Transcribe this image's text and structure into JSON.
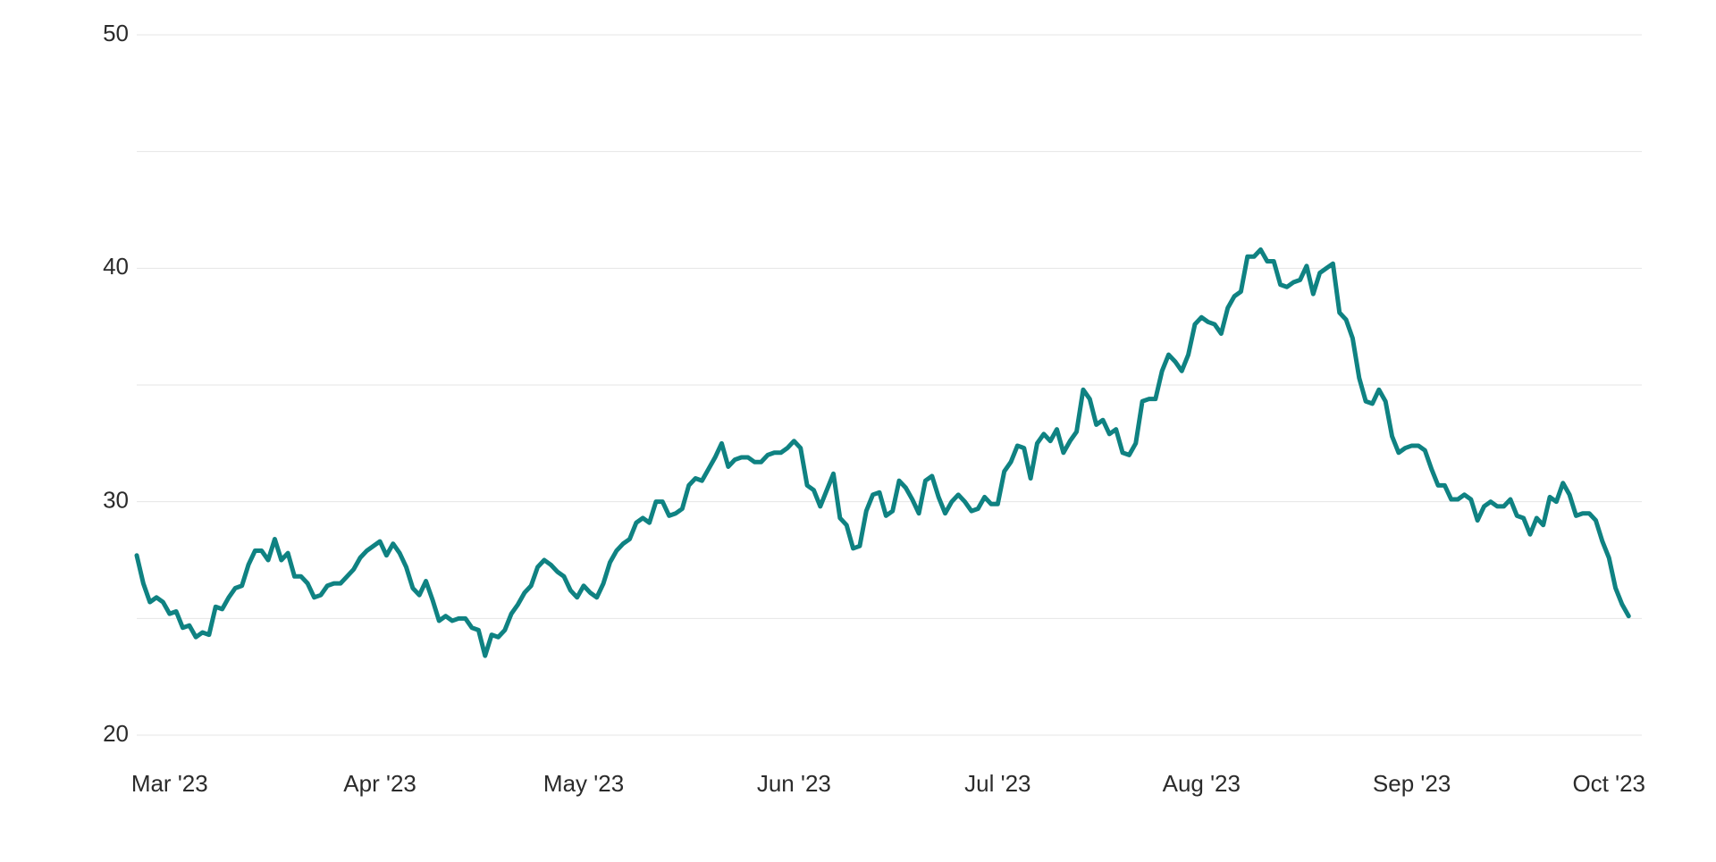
{
  "chart_data": {
    "type": "line",
    "x": [
      0,
      1,
      2,
      3,
      4,
      5,
      6,
      7,
      8,
      9,
      10,
      11,
      12,
      13,
      14,
      15,
      16,
      17,
      18,
      19,
      20,
      21,
      22,
      23,
      24,
      25,
      26,
      27,
      28,
      29,
      30,
      31,
      32,
      33,
      34,
      35,
      36,
      37,
      38,
      39,
      40,
      41,
      42,
      43,
      44,
      45,
      46,
      47,
      48,
      49,
      50,
      51,
      52,
      53,
      54,
      55,
      56,
      57,
      58,
      59,
      60,
      61,
      62,
      63,
      64,
      65,
      66,
      67,
      68,
      69,
      70,
      71,
      72,
      73,
      74,
      75,
      76,
      77,
      78,
      79,
      80,
      81,
      82,
      83,
      84,
      85,
      86,
      87,
      88,
      89,
      90,
      91,
      92,
      93,
      94,
      95,
      96,
      97,
      98,
      99,
      100,
      101,
      102,
      103,
      104,
      105,
      106,
      107,
      108,
      109,
      110,
      111,
      112,
      113,
      114,
      115,
      116,
      117,
      118,
      119,
      120,
      121,
      122,
      123,
      124,
      125,
      126,
      127,
      128,
      129,
      130,
      131,
      132,
      133,
      134,
      135,
      136,
      137,
      138,
      139,
      140,
      141,
      142,
      143,
      144,
      145,
      146,
      147,
      148,
      149,
      150,
      151,
      152,
      153,
      154,
      155,
      156,
      157,
      158,
      159,
      160,
      161,
      162,
      163,
      164,
      165,
      166,
      167,
      168,
      169,
      170,
      171,
      172,
      173,
      174,
      175,
      176,
      177,
      178,
      179,
      180,
      181,
      182,
      183,
      184,
      185,
      186,
      187,
      188,
      189,
      190,
      191,
      192,
      193,
      194,
      195,
      196,
      197,
      198,
      199,
      200,
      201,
      202,
      203,
      204,
      205,
      206,
      207,
      208,
      209,
      210,
      211,
      212,
      213,
      214,
      215,
      216,
      217,
      218,
      219,
      220,
      221,
      222,
      223,
      224,
      225,
      226,
      227
    ],
    "values": [
      27.7,
      26.5,
      25.7,
      25.9,
      25.7,
      25.2,
      25.3,
      24.6,
      24.7,
      24.2,
      24.4,
      24.3,
      25.5,
      25.4,
      25.9,
      26.3,
      26.4,
      27.3,
      27.9,
      27.9,
      27.5,
      28.4,
      27.5,
      27.8,
      26.8,
      26.8,
      26.5,
      25.9,
      26.0,
      26.4,
      26.5,
      26.5,
      26.8,
      27.1,
      27.6,
      27.9,
      28.1,
      28.3,
      27.7,
      28.2,
      27.8,
      27.2,
      26.3,
      26.0,
      26.6,
      25.8,
      24.9,
      25.1,
      24.9,
      25.0,
      25.0,
      24.6,
      24.5,
      23.4,
      24.3,
      24.2,
      24.5,
      25.2,
      25.6,
      26.1,
      26.4,
      27.2,
      27.5,
      27.3,
      27.0,
      26.8,
      26.2,
      25.9,
      26.4,
      26.1,
      25.9,
      26.5,
      27.4,
      27.9,
      28.2,
      28.4,
      29.1,
      29.3,
      29.1,
      30.0,
      30.0,
      29.4,
      29.5,
      29.7,
      30.7,
      31.0,
      30.9,
      31.4,
      31.9,
      32.5,
      31.5,
      31.8,
      31.9,
      31.9,
      31.7,
      31.7,
      32.0,
      32.1,
      32.1,
      32.3,
      32.6,
      32.3,
      30.7,
      30.5,
      29.8,
      30.5,
      31.2,
      29.3,
      29.0,
      28.0,
      28.1,
      29.6,
      30.3,
      30.4,
      29.4,
      29.6,
      30.9,
      30.6,
      30.1,
      29.5,
      30.9,
      31.1,
      30.2,
      29.5,
      30.0,
      30.3,
      30.0,
      29.6,
      29.7,
      30.2,
      29.9,
      29.9,
      31.3,
      31.7,
      32.4,
      32.3,
      31.0,
      32.5,
      32.9,
      32.6,
      33.1,
      32.1,
      32.6,
      33.0,
      34.8,
      34.4,
      33.3,
      33.5,
      32.9,
      33.1,
      32.1,
      32.0,
      32.5,
      34.3,
      34.4,
      34.4,
      35.6,
      36.3,
      36.0,
      35.6,
      36.3,
      37.6,
      37.9,
      37.7,
      37.6,
      37.2,
      38.3,
      38.8,
      39.0,
      40.5,
      40.5,
      40.8,
      40.3,
      40.3,
      39.3,
      39.2,
      39.4,
      39.5,
      40.1,
      38.9,
      39.8,
      40.0,
      40.2,
      38.1,
      37.8,
      37.0,
      35.3,
      34.3,
      34.2,
      34.8,
      34.3,
      32.8,
      32.1,
      32.3,
      32.4,
      32.4,
      32.2,
      31.4,
      30.7,
      30.7,
      30.1,
      30.1,
      30.3,
      30.1,
      29.2,
      29.8,
      30.0,
      29.8,
      29.8,
      30.1,
      29.4,
      29.3,
      28.6,
      29.3,
      29.0,
      30.2,
      30.0,
      30.8,
      30.3,
      29.4,
      29.5,
      29.5,
      29.2,
      28.3,
      27.6,
      26.3,
      25.6,
      25.1
    ],
    "color": "#0f8282",
    "xlim": [
      0,
      229
    ],
    "xticks": [
      {
        "value": 5,
        "label": "Mar '23"
      },
      {
        "value": 37,
        "label": "Apr '23"
      },
      {
        "value": 68,
        "label": "May '23"
      },
      {
        "value": 100,
        "label": "Jun '23"
      },
      {
        "value": 131,
        "label": "Jul '23"
      },
      {
        "value": 162,
        "label": "Aug '23"
      },
      {
        "value": 194,
        "label": "Sep '23"
      },
      {
        "value": 224,
        "label": "Oct '23"
      }
    ],
    "ylim": [
      20,
      50
    ],
    "yticks": [
      20,
      30,
      40,
      50
    ],
    "minor_yticks": [
      25,
      35,
      45
    ],
    "grid": true
  }
}
